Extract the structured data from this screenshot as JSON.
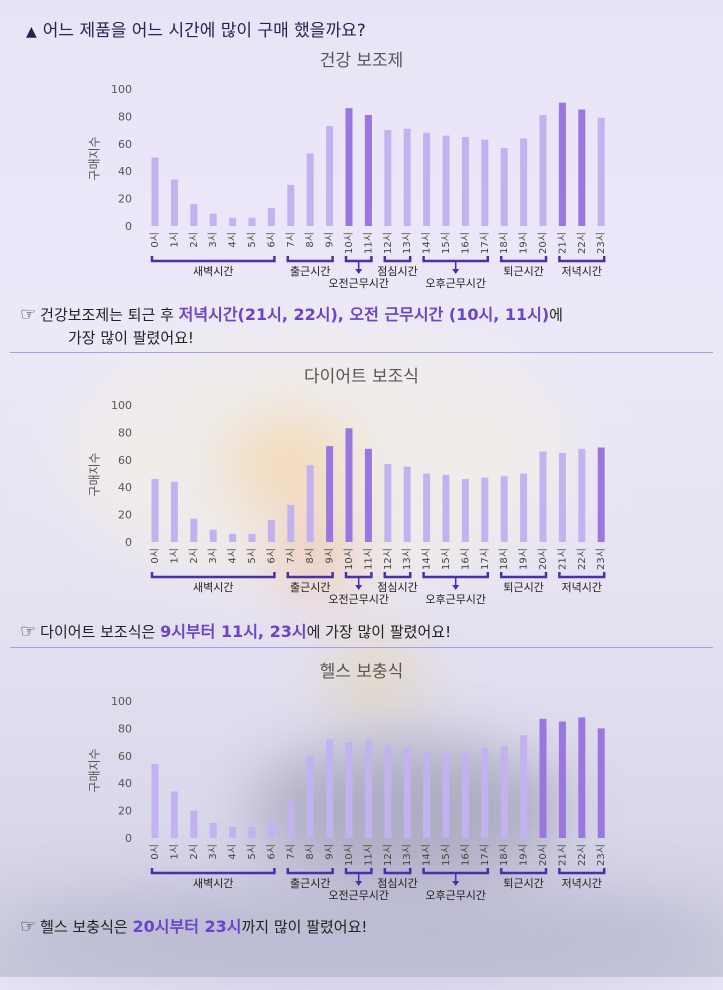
{
  "header": {
    "icon": "triangle-up-icon",
    "title": "어느 제품을 어느 시간에 많이 구매 했을까요?"
  },
  "colors": {
    "light_bar": "#c3b2f0",
    "dark_bar": "#9a76e0",
    "bracket": "#4a2fa8",
    "highlight": "#6b44c9"
  },
  "hours": [
    "0시",
    "1시",
    "2시",
    "3시",
    "4시",
    "5시",
    "6시",
    "7시",
    "8시",
    "9시",
    "10시",
    "11시",
    "12시",
    "13시",
    "14시",
    "15시",
    "16시",
    "17시",
    "18시",
    "19시",
    "20시",
    "21시",
    "22시",
    "23시"
  ],
  "time_groups": {
    "dawn": "새벽시간",
    "commute_in": "출근시간",
    "morning_work": "오전근무시간",
    "lunch": "점심시간",
    "afternoon_work": "오후근무시간",
    "commute_out": "퇴근시간",
    "evening": "저녁시간"
  },
  "chart_data": [
    {
      "type": "bar",
      "title": "건강 보조제",
      "ylabel": "구매지수",
      "ylim": [
        0,
        100
      ],
      "yticks": [
        0,
        20,
        40,
        60,
        80,
        100
      ],
      "categories": [
        "0시",
        "1시",
        "2시",
        "3시",
        "4시",
        "5시",
        "6시",
        "7시",
        "8시",
        "9시",
        "10시",
        "11시",
        "12시",
        "13시",
        "14시",
        "15시",
        "16시",
        "17시",
        "18시",
        "19시",
        "20시",
        "21시",
        "22시",
        "23시"
      ],
      "values": [
        50,
        34,
        16,
        9,
        6,
        6,
        13,
        30,
        53,
        73,
        86,
        81,
        70,
        71,
        68,
        66,
        65,
        63,
        57,
        64,
        81,
        90,
        85,
        79
      ],
      "highlight": [
        10,
        11,
        21,
        22
      ],
      "note": {
        "before": "건강보조제는 퇴근 후 ",
        "hl": "저녁시간(21시, 22시), 오전 근무시간 (10시, 11시)",
        "after": "에",
        "line2": "가장 많이 팔렸어요!"
      }
    },
    {
      "type": "bar",
      "title": "다이어트 보조식",
      "ylabel": "구매지수",
      "ylim": [
        0,
        100
      ],
      "yticks": [
        0,
        20,
        40,
        60,
        80,
        100
      ],
      "categories": [
        "0시",
        "1시",
        "2시",
        "3시",
        "4시",
        "5시",
        "6시",
        "7시",
        "8시",
        "9시",
        "10시",
        "11시",
        "12시",
        "13시",
        "14시",
        "15시",
        "16시",
        "17시",
        "18시",
        "19시",
        "20시",
        "21시",
        "22시",
        "23시"
      ],
      "values": [
        46,
        44,
        17,
        9,
        6,
        6,
        16,
        27,
        56,
        70,
        83,
        68,
        57,
        55,
        50,
        49,
        46,
        47,
        48,
        50,
        66,
        65,
        68,
        69
      ],
      "highlight": [
        9,
        10,
        11,
        23
      ],
      "note": {
        "before": "다이어트 보조식은 ",
        "hl": "9시부터 11시, 23시",
        "after": "에 가장 많이 팔렸어요!",
        "line2": ""
      }
    },
    {
      "type": "bar",
      "title": "헬스 보충식",
      "ylabel": "구매지수",
      "ylim": [
        0,
        100
      ],
      "yticks": [
        0,
        20,
        40,
        60,
        80,
        100
      ],
      "categories": [
        "0시",
        "1시",
        "2시",
        "3시",
        "4시",
        "5시",
        "6시",
        "7시",
        "8시",
        "9시",
        "10시",
        "11시",
        "12시",
        "13시",
        "14시",
        "15시",
        "16시",
        "17시",
        "18시",
        "19시",
        "20시",
        "21시",
        "22시",
        "23시"
      ],
      "values": [
        54,
        34,
        20,
        11,
        8,
        8,
        12,
        27,
        60,
        72,
        70,
        72,
        68,
        66,
        63,
        62,
        62,
        66,
        67,
        75,
        87,
        85,
        88,
        80
      ],
      "highlight": [
        20,
        21,
        22,
        23
      ],
      "note": {
        "before": "헬스 보충식은 ",
        "hl": "20시부터 23시",
        "after": "까지 많이 팔렸어요!",
        "line2": ""
      }
    }
  ]
}
